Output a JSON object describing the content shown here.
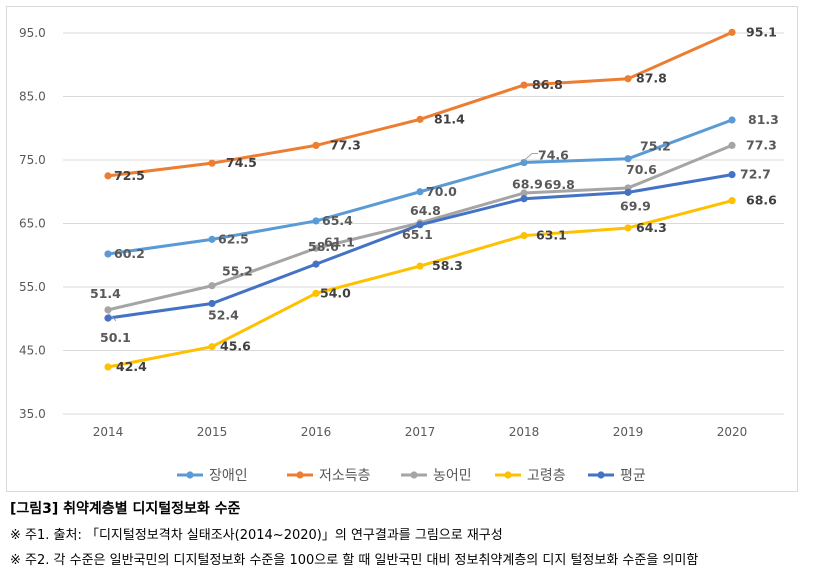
{
  "chart_data": {
    "type": "line",
    "x": [
      "2014",
      "2015",
      "2016",
      "2017",
      "2018",
      "2019",
      "2020"
    ],
    "yticks": [
      "95.0",
      "85.0",
      "75.0",
      "65.0",
      "55.0",
      "45.0",
      "35.0"
    ],
    "ylim": [
      35,
      95
    ],
    "grid": true,
    "legend_position": "bottom",
    "series": [
      {
        "name": "장애인",
        "color": "#5b9bd5",
        "values": [
          60.2,
          62.5,
          65.4,
          70.0,
          74.6,
          75.2,
          81.3
        ],
        "labels": [
          "60.2",
          "62.5",
          "65.4",
          "70.0",
          "74.6",
          "75.2",
          "81.3"
        ]
      },
      {
        "name": "저소득층",
        "color": "#ed7d31",
        "values": [
          72.5,
          74.5,
          77.3,
          81.4,
          86.8,
          87.8,
          95.1
        ],
        "labels": [
          "72.5",
          "74.5",
          "77.3",
          "81.4",
          "86.8",
          "87.8",
          "95.1"
        ]
      },
      {
        "name": "농어민",
        "color": "#a5a5a5",
        "values": [
          51.4,
          55.2,
          61.1,
          65.1,
          69.8,
          70.6,
          77.3
        ],
        "labels": [
          "51.4",
          "55.2",
          "61.1",
          "65.1",
          "69.8",
          "70.6",
          "77.3"
        ]
      },
      {
        "name": "고령층",
        "color": "#ffc000",
        "values": [
          42.4,
          45.6,
          54.0,
          58.3,
          63.1,
          64.3,
          68.6
        ],
        "labels": [
          "42.4",
          "45.6",
          "54.0",
          "58.3",
          "63.1",
          "64.3",
          "68.6"
        ]
      },
      {
        "name": "평균",
        "color": "#4472c4",
        "values": [
          50.1,
          52.4,
          58.6,
          64.8,
          68.9,
          69.9,
          72.7
        ],
        "labels": [
          "50.1",
          "52.4",
          "58.6",
          "64.8",
          "68.9",
          "69.9",
          "72.7"
        ]
      }
    ]
  },
  "caption": {
    "figure": "[그림3] 취약계층별 디지털정보화 수준",
    "note1": "※ 주1. 출처: 「디지털정보격차 실태조사(2014~2020)」의 연구결과를 그림으로 재구성",
    "note2": "※ 주2. 각 수준은 일반국민의 디지털정보화 수준을 100으로 할 때 일반국민 대비 정보취약계층의 디지 털정보화 수준을 의미함"
  }
}
